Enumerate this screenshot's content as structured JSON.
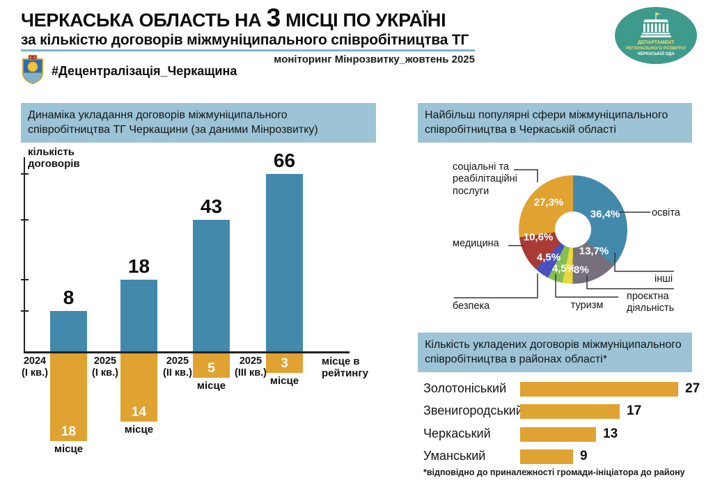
{
  "header": {
    "title_prefix": "ЧЕРКАСЬКА ОБЛАСТЬ НА ",
    "title_rank": "3",
    "title_suffix": " МІСЦІ ПО УКРАЇНІ",
    "subtitle": "за кількістю договорів міжмуніципального співробітництва ТГ",
    "monitoring": "моніторинг Мінрозвитку_жовтень 2025",
    "hashtag": "#Децентралізація_Черкащина",
    "logo": {
      "line1": "ДЕПАРТАМЕНТ",
      "line2": "РЕГІОНАЛЬНОГО РОЗВИТКУ",
      "line3": "ЧЕРКАСЬКОЇ ОДА"
    }
  },
  "colors": {
    "bar_blue": "#4389AC",
    "bar_orange": "#E0A231",
    "panel_title_bg": "#9DC4D6",
    "separator_blue": "#7FB2CE",
    "logo_teal": "#3E9B8C"
  },
  "chart_data": [
    {
      "type": "bar",
      "title": "Динаміка укладання договорів міжмуніципального співробітництва ТГ Черкащини (за даними Мінрозвитку)",
      "ylabel": "кількість\nдоговорів",
      "xlabel": "місце в\nрейтингу",
      "categories": [
        {
          "line1": "2024",
          "line2": "(І кв.)"
        },
        {
          "line1": "2025",
          "line2": "(І кв.)"
        },
        {
          "line1": "2025",
          "line2": "(ІІ кв.)"
        },
        {
          "line1": "2025",
          "line2": "(ІІІ кв.)"
        }
      ],
      "series": [
        {
          "name": "кількість договорів",
          "values": [
            8,
            18,
            43,
            66
          ],
          "color": "#4389AC",
          "direction": "up"
        },
        {
          "name": "місце в рейтингу",
          "values": [
            18,
            14,
            5,
            3
          ],
          "color": "#E0A231",
          "direction": "down",
          "suffix": "місце"
        }
      ],
      "grid": false,
      "legend": "none"
    },
    {
      "type": "pie",
      "donut": true,
      "title": "Найбільш популярні сфери міжмуніципального співробітництва в Черкаській області",
      "slices": [
        {
          "label": "освіта",
          "value": 36.4,
          "pct": "36,4%",
          "color": "#4389AC"
        },
        {
          "label": "інші",
          "value": 13.7,
          "pct": "13,7%",
          "color": "#75707C"
        },
        {
          "label": "проєктна діяльність",
          "value": 3,
          "pct": "3%",
          "color": "#E8D83C"
        },
        {
          "label": "туризм",
          "value": 4.5,
          "pct": "4,5%",
          "color": "#85BE56"
        },
        {
          "label": "безпека",
          "value": 4.5,
          "pct": "4,5%",
          "color": "#4A50C0"
        },
        {
          "label": "медицина",
          "value": 10.6,
          "pct": "10,6%",
          "color": "#A93B35"
        },
        {
          "label": "соціальні та реабілітаційні послуги",
          "value": 27.3,
          "pct": "27,3%",
          "color": "#E0A231"
        }
      ],
      "legend": "leader-lines"
    },
    {
      "type": "bar",
      "orientation": "horizontal",
      "title": "Кількість укладених договорів міжмуніципального співробітництва в районах області*",
      "categories": [
        "Золотоніський",
        "Звенигородський",
        "Черкаський",
        "Уманський"
      ],
      "values": [
        27,
        17,
        13,
        9
      ],
      "color": "#E0A231",
      "footnote": "*відповідно до приналежності громади-ініціатора до району"
    }
  ]
}
